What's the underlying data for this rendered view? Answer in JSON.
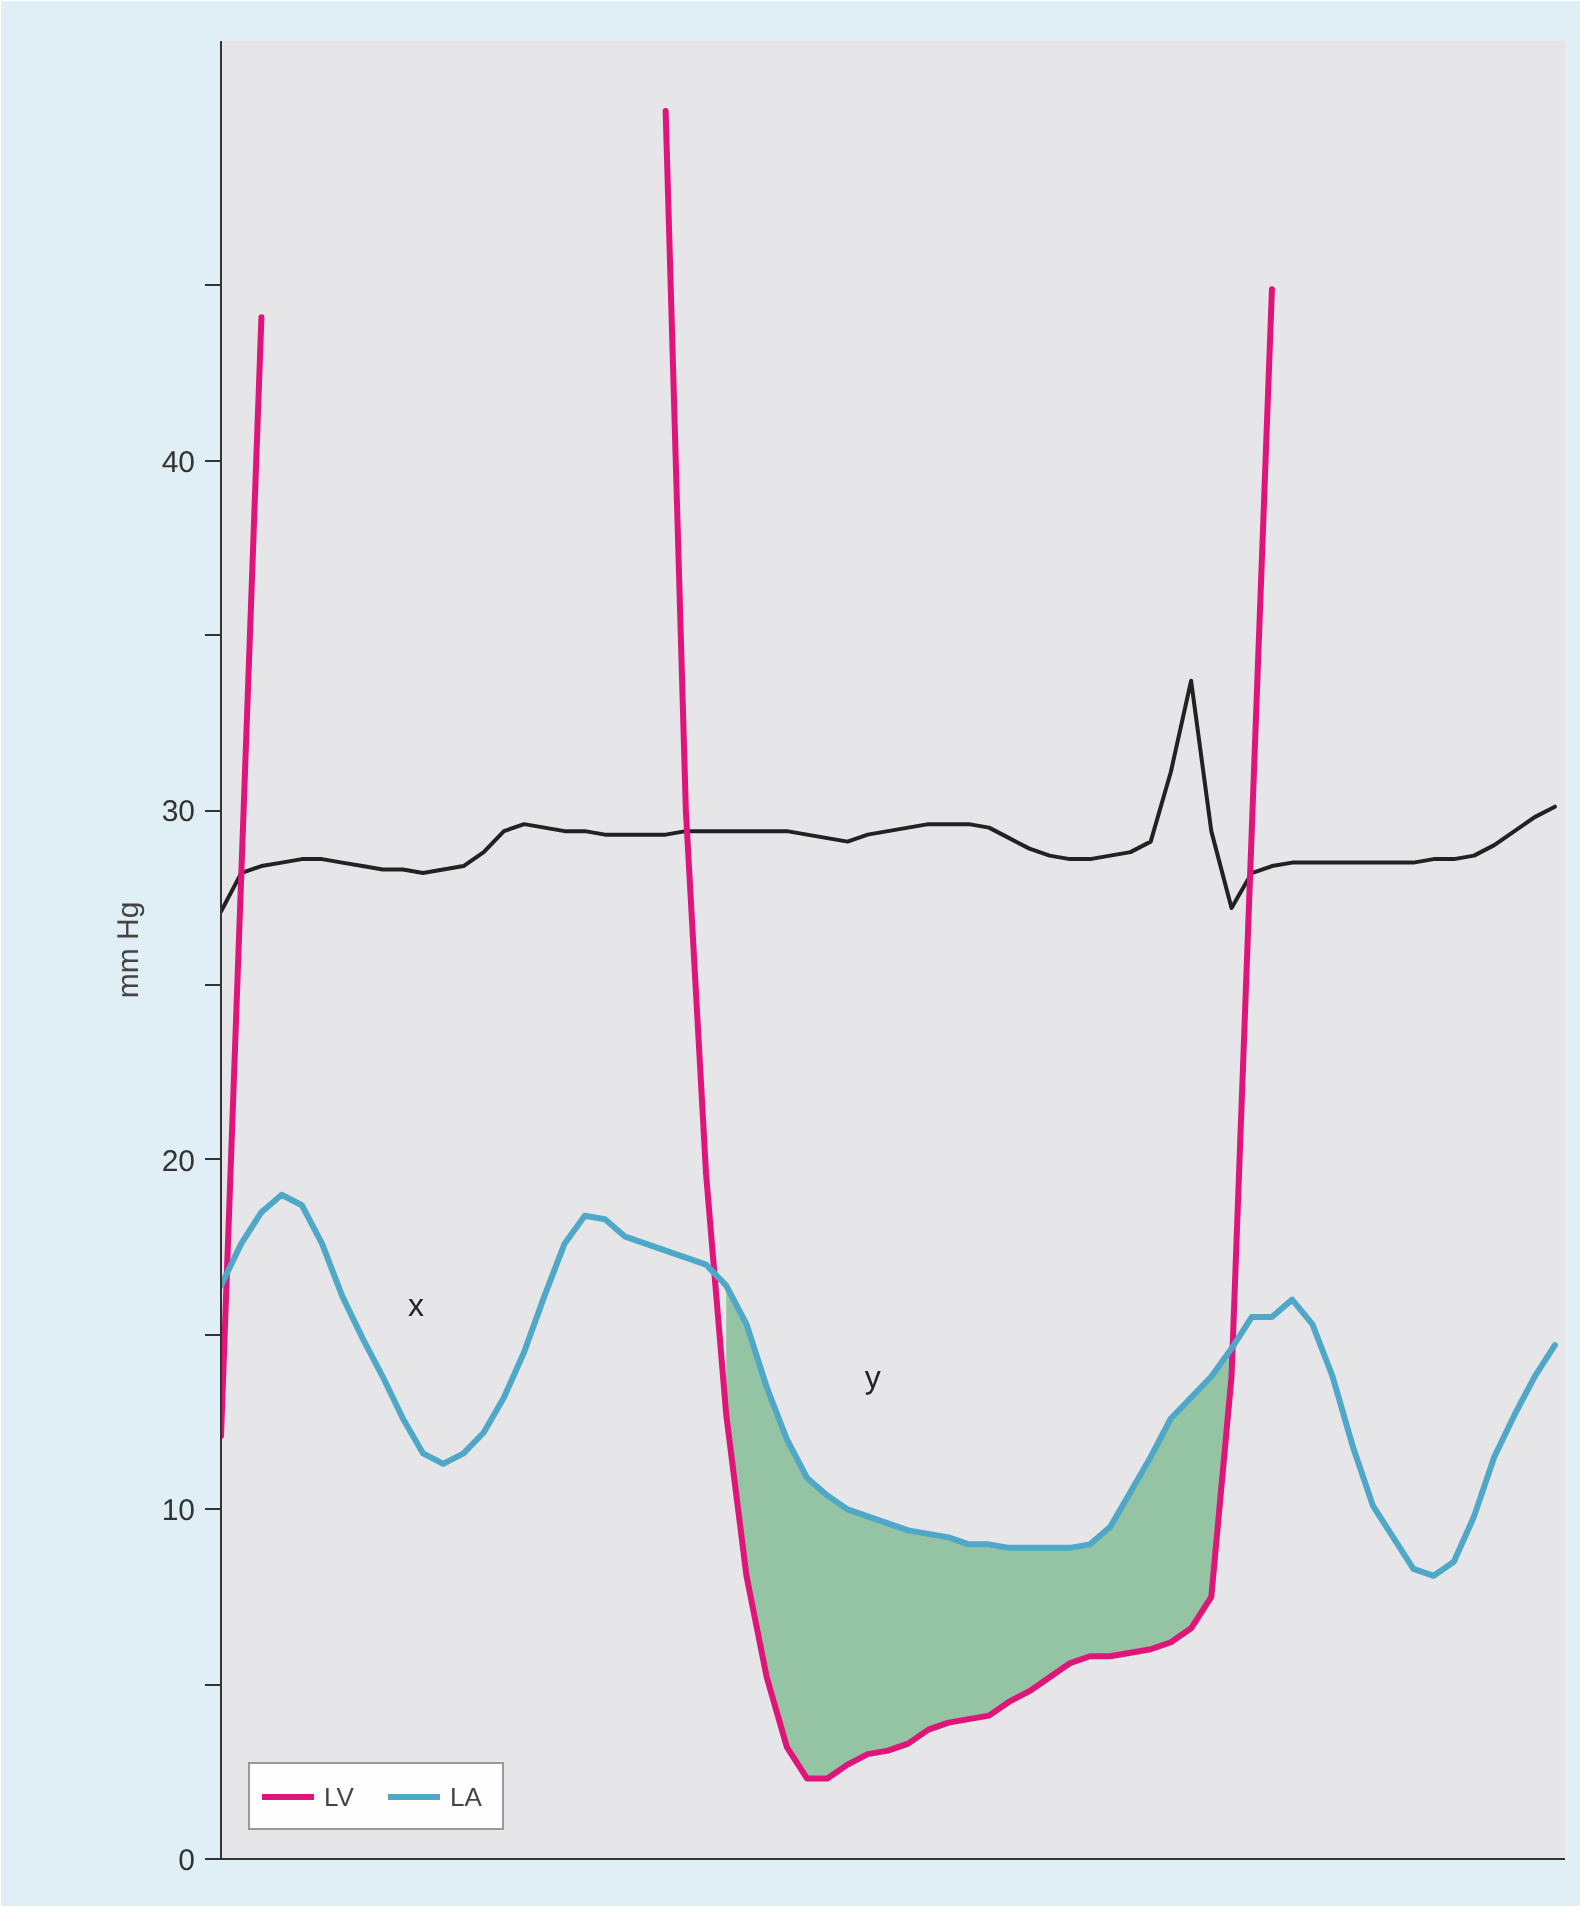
{
  "chart_data": {
    "type": "line",
    "ylabel": "mm Hg",
    "ylim": [
      0,
      52
    ],
    "tick_labels": "y",
    "legend": "bottom left",
    "marker": "none",
    "line_style": "solid",
    "yticks": [
      0,
      {
        "value": 5,
        "label": null
      },
      10,
      {
        "value": 15,
        "label": null
      },
      20,
      {
        "value": 25,
        "label": null
      },
      30,
      {
        "value": 35,
        "label": null
      },
      40,
      {
        "value": 45,
        "label": null
      }
    ],
    "categories": [
      null,
      null,
      null,
      null,
      null,
      null,
      null,
      null,
      null,
      null,
      null,
      null,
      null,
      null,
      null,
      null,
      null,
      null,
      null,
      null,
      null,
      null,
      null,
      null,
      null,
      null,
      null,
      null,
      null,
      null,
      null,
      null,
      null,
      null,
      null,
      null,
      null,
      null,
      null,
      null,
      null,
      null,
      null,
      null,
      null,
      null,
      null,
      null,
      null,
      null,
      null,
      null,
      null,
      null,
      null,
      null,
      null,
      null,
      null,
      null,
      null,
      null,
      null,
      null,
      null,
      null,
      null
    ],
    "annotations": [
      "x",
      "y"
    ],
    "series": [
      {
        "color": "#222222",
        "values": [
          27.1,
          28.2,
          28.4,
          28.5,
          28.6,
          28.6,
          28.5,
          28.4,
          28.3,
          28.3,
          28.2,
          28.3,
          28.4,
          28.8,
          29.4,
          29.6,
          29.5,
          29.4,
          29.4,
          29.3,
          29.3,
          29.3,
          29.3,
          29.4,
          29.4,
          29.4,
          29.4,
          29.4,
          29.4,
          29.3,
          29.2,
          29.1,
          29.3,
          29.4,
          29.5,
          29.6,
          29.6,
          29.6,
          29.5,
          29.2,
          28.9,
          28.7,
          28.6,
          28.6,
          28.7,
          28.8,
          29.1,
          31.1,
          33.7,
          29.4,
          27.2,
          28.2,
          28.4,
          28.5,
          28.5,
          28.5,
          28.5,
          28.5,
          28.5,
          28.5,
          28.6,
          28.6,
          28.7,
          29.0,
          29.4,
          29.8,
          30.1
        ]
      },
      {
        "name": "LV",
        "color": "#e0157a",
        "values": [
          12.1,
          28.1,
          44.1,
          null,
          null,
          null,
          null,
          null,
          null,
          null,
          null,
          null,
          null,
          null,
          null,
          null,
          null,
          null,
          null,
          null,
          null,
          null,
          50,
          30,
          19.6,
          12.7,
          8.1,
          5.2,
          3.2,
          2.3,
          2.3,
          2.7,
          3.0,
          3.1,
          3.3,
          3.7,
          3.9,
          4.0,
          4.1,
          4.5,
          4.8,
          5.2,
          5.6,
          5.8,
          5.8,
          5.9,
          6.0,
          6.2,
          6.6,
          7.5,
          13.8,
          29.4,
          44.9,
          null,
          null,
          null,
          null,
          null,
          null,
          null,
          null,
          null,
          null,
          null,
          null,
          null,
          null
        ]
      },
      {
        "name": "LA",
        "color": "#4fa8c8",
        "values": [
          16.4,
          17.6,
          18.5,
          19.0,
          18.7,
          17.6,
          16.1,
          14.9,
          13.8,
          12.6,
          11.6,
          11.3,
          11.6,
          12.2,
          13.2,
          14.5,
          16.1,
          17.6,
          18.4,
          18.3,
          17.8,
          17.6,
          17.4,
          17.2,
          17.0,
          16.4,
          15.3,
          13.5,
          12.0,
          10.9,
          10.4,
          10.0,
          9.8,
          9.6,
          9.4,
          9.3,
          9.2,
          9.0,
          9.0,
          8.9,
          8.9,
          8.9,
          8.9,
          9.0,
          9.5,
          10.5,
          11.5,
          12.6,
          13.2,
          13.8,
          14.6,
          15.5,
          15.5,
          16.0,
          15.3,
          13.8,
          11.8,
          10.1,
          9.2,
          8.3,
          8.1,
          8.5,
          9.8,
          11.5,
          12.7,
          13.8,
          14.7
        ],
        "lower": [
          null,
          null,
          null,
          null,
          null,
          null,
          null,
          null,
          null,
          null,
          null,
          null,
          null,
          null,
          null,
          null,
          null,
          null,
          null,
          null,
          null,
          null,
          null,
          null,
          null,
          12.7,
          8.1,
          5.2,
          3.2,
          2.3,
          2.3,
          2.7,
          3.0,
          3.1,
          3.3,
          3.7,
          3.9,
          4.0,
          4.1,
          4.5,
          4.8,
          5.2,
          5.6,
          5.8,
          5.8,
          5.9,
          6.0,
          6.2,
          6.6,
          7.5,
          13.8,
          null,
          null,
          null,
          null,
          null,
          null,
          null,
          null,
          null,
          null,
          null,
          null,
          null,
          null,
          null,
          null
        ],
        "upper": [
          null,
          null,
          null,
          null,
          null,
          null,
          null,
          null,
          null,
          null,
          null,
          null,
          null,
          null,
          null,
          null,
          null,
          null,
          null,
          null,
          null,
          null,
          null,
          null,
          null,
          16.4,
          15.3,
          13.5,
          12.0,
          10.9,
          10.4,
          10.0,
          9.8,
          9.6,
          9.4,
          9.3,
          9.2,
          9.0,
          9.0,
          8.9,
          8.9,
          8.9,
          8.9,
          9.0,
          9.5,
          10.5,
          11.5,
          12.6,
          13.2,
          13.8,
          14.6,
          null,
          null,
          null,
          null,
          null,
          null,
          null,
          null,
          null,
          null,
          null,
          null,
          null,
          null,
          null,
          null
        ]
      }
    ]
  }
}
